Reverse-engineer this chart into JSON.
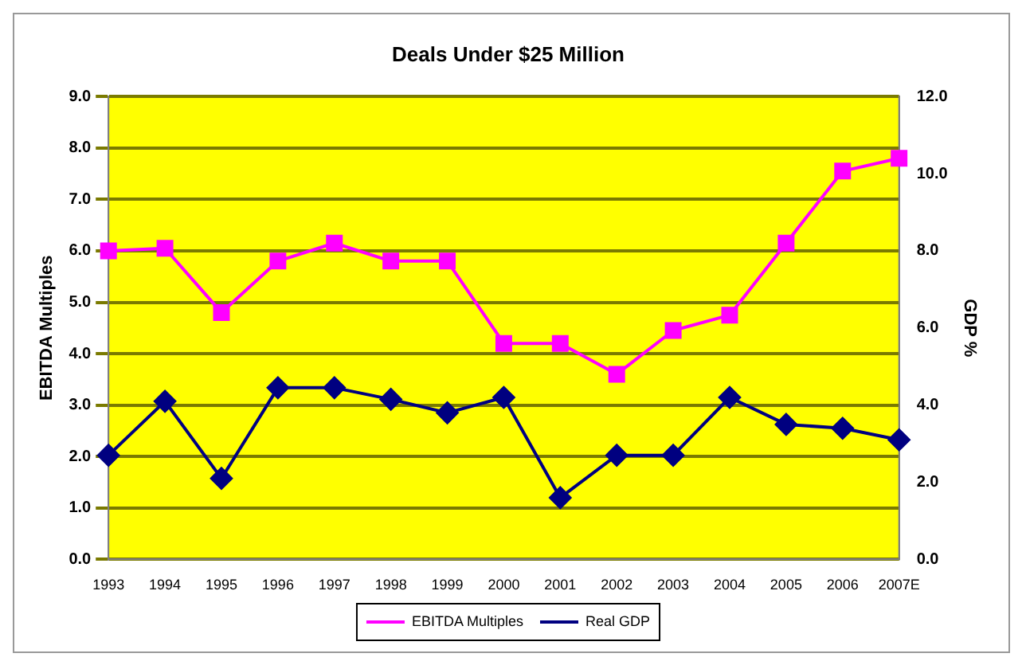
{
  "chart_data": {
    "type": "line",
    "title": "Deals Under $25 Million",
    "ylabel": "EBITDA Multiples",
    "y2label": "GDP %",
    "categories": [
      "1993",
      "1994",
      "1995",
      "1996",
      "1997",
      "1998",
      "1999",
      "2000",
      "2001",
      "2002",
      "2003",
      "2004",
      "2005",
      "2006",
      "2007E"
    ],
    "series": [
      {
        "name": "EBITDA Multiples",
        "color": "#ff00ff",
        "marker": "square",
        "values": [
          6.0,
          6.05,
          4.8,
          5.8,
          6.15,
          5.8,
          5.8,
          4.2,
          4.2,
          3.6,
          4.45,
          4.75,
          6.15,
          7.55,
          7.8
        ]
      },
      {
        "name": "Real GDP",
        "color": "#000080",
        "marker": "diamond",
        "axis": "y2",
        "values": [
          2.7,
          4.1,
          2.1,
          4.45,
          4.45,
          4.15,
          3.8,
          4.2,
          1.6,
          2.7,
          2.7,
          4.2,
          3.5,
          3.4,
          3.1
        ]
      }
    ],
    "ylim": [
      0,
      9
    ],
    "yticks": [
      {
        "value": 0,
        "label": "0.0"
      },
      {
        "value": 1,
        "label": "1.0"
      },
      {
        "value": 2,
        "label": "2.0"
      },
      {
        "value": 3,
        "label": "3.0"
      },
      {
        "value": 4,
        "label": "4.0"
      },
      {
        "value": 5,
        "label": "5.0"
      },
      {
        "value": 6,
        "label": "6.0"
      },
      {
        "value": 7,
        "label": "7.0"
      },
      {
        "value": 8,
        "label": "8.0"
      },
      {
        "value": 9,
        "label": "9.0"
      }
    ],
    "y2lim": [
      0,
      12
    ],
    "y2ticks": [
      {
        "value": 0,
        "label": "0.0"
      },
      {
        "value": 2,
        "label": "2.0"
      },
      {
        "value": 4,
        "label": "4.0"
      },
      {
        "value": 6,
        "label": "6.0"
      },
      {
        "value": 8,
        "label": "8.0"
      },
      {
        "value": 10,
        "label": "10.0"
      },
      {
        "value": 12,
        "label": "12.0"
      }
    ],
    "grid": "y",
    "legend": "bottom",
    "line_style": "solid"
  }
}
